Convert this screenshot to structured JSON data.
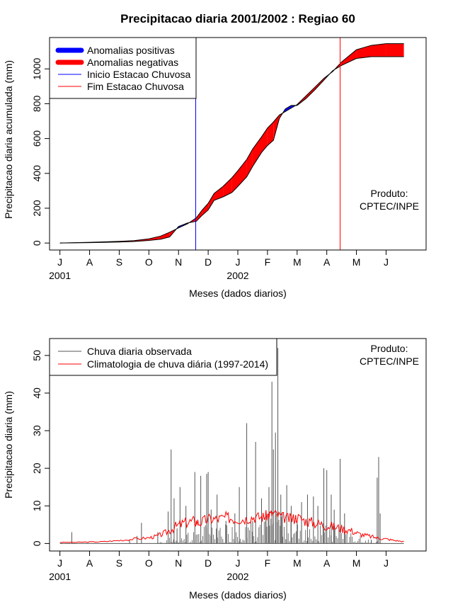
{
  "chart_data": [
    {
      "type": "area",
      "title": "Precipitacao diaria 2001/2002 : Regiao 60",
      "xlabel": "Meses (dados diarios)",
      "ylabel": "Precipitacao diaria acumulada (mm)",
      "ylim": [
        -40,
        1180
      ],
      "yticks": [
        0,
        200,
        400,
        600,
        800,
        1000
      ],
      "month_labels": [
        "J",
        "A",
        "S",
        "O",
        "N",
        "D",
        "J",
        "F",
        "M",
        "A",
        "M",
        "J"
      ],
      "year_labels": [
        {
          "label": "2001",
          "month_index": 0
        },
        {
          "label": "2002",
          "month_index": 6
        }
      ],
      "x_unit": "months since 1 Jul 2001",
      "xlim": [
        -0.35,
        12.35
      ],
      "legend": [
        {
          "label": "Anomalias positivas",
          "color": "#0000ff",
          "kind": "thick"
        },
        {
          "label": "Anomalias negativas",
          "color": "#ff0000",
          "kind": "thick"
        },
        {
          "label": "Inicio Estacao Chuvosa",
          "color": "#0000ff",
          "kind": "thin"
        },
        {
          "label": "Fim Estacao Chuvosa",
          "color": "#ff0000",
          "kind": "thin"
        }
      ],
      "legend_position": "top-left",
      "onset_month": 4.58,
      "end_month": 9.45,
      "annotation": [
        "Produto:",
        "CPTEC/INPE"
      ],
      "annotation_position": "right",
      "observed_accumulated": {
        "x": [
          0,
          1,
          2,
          2.5,
          3,
          3.4,
          3.7,
          4,
          4.3,
          4.6,
          4.8,
          5,
          5.2,
          5.5,
          5.8,
          6,
          6.3,
          6.5,
          6.8,
          7,
          7.2,
          7.4,
          7.6,
          7.8,
          8.0,
          8.3,
          8.6,
          8.9,
          9.2,
          9.5,
          10,
          10.5,
          11,
          11.6
        ],
        "y": [
          0,
          2,
          6,
          9,
          15,
          22,
          35,
          95,
          115,
          125,
          160,
          190,
          245,
          265,
          290,
          325,
          380,
          440,
          520,
          560,
          590,
          715,
          770,
          790,
          790,
          830,
          880,
          935,
          990,
          1020,
          1060,
          1070,
          1070,
          1070
        ]
      },
      "climatology_accumulated": {
        "x": [
          0,
          1,
          2,
          2.5,
          3,
          3.4,
          3.7,
          4,
          4.3,
          4.6,
          4.8,
          5,
          5.2,
          5.5,
          5.8,
          6,
          6.3,
          6.5,
          6.8,
          7,
          7.2,
          7.4,
          7.6,
          7.8,
          8.0,
          8.3,
          8.6,
          8.9,
          9.2,
          9.5,
          10,
          10.5,
          11,
          11.6
        ],
        "y": [
          0,
          4,
          10,
          14,
          24,
          40,
          62,
          87,
          110,
          145,
          190,
          228,
          285,
          325,
          375,
          415,
          480,
          540,
          610,
          660,
          695,
          735,
          755,
          775,
          795,
          845,
          895,
          945,
          985,
          1040,
          1110,
          1135,
          1145,
          1145
        ]
      }
    },
    {
      "type": "bar",
      "title": "",
      "xlabel": "Meses (dados diarios)",
      "ylabel": "Precipitacao diaria (mm)",
      "ylim": [
        -2,
        54.5
      ],
      "yticks": [
        0,
        10,
        20,
        30,
        40,
        50
      ],
      "month_labels": [
        "J",
        "A",
        "S",
        "O",
        "N",
        "D",
        "J",
        "F",
        "M",
        "A",
        "M",
        "J"
      ],
      "year_labels": [
        {
          "label": "2001",
          "month_index": 0
        },
        {
          "label": "2002",
          "month_index": 6
        }
      ],
      "x_unit": "months since 1 Jul 2001",
      "xlim": [
        -0.35,
        12.35
      ],
      "legend": [
        {
          "label": "Chuva diaria observada",
          "color": "#555555",
          "kind": "thin"
        },
        {
          "label": "Climatologia de chuva diária (1997-2014)",
          "color": "#ff0000",
          "kind": "thin"
        }
      ],
      "legend_position": "top-left",
      "annotation": [
        "Produto:",
        "CPTEC/INPE"
      ],
      "annotation_position": "top-right",
      "observed_peaks": {
        "x": [
          0.4,
          2.35,
          2.6,
          2.75,
          3.3,
          3.65,
          3.75,
          3.85,
          3.95,
          4.05,
          4.25,
          4.55,
          4.75,
          4.95,
          5.0,
          5.1,
          5.3,
          5.6,
          5.9,
          6.05,
          6.3,
          6.5,
          6.6,
          6.8,
          6.95,
          7.05,
          7.15,
          7.2,
          7.27,
          7.35,
          7.45,
          7.5,
          7.65,
          7.8,
          8.0,
          8.15,
          8.35,
          8.55,
          8.7,
          8.9,
          9.0,
          9.15,
          9.25,
          9.45,
          9.6,
          10.5,
          10.7,
          10.75,
          10.8
        ],
        "y": [
          3,
          1,
          2,
          5.5,
          3,
          8.5,
          25,
          12,
          4,
          15,
          10,
          19,
          18,
          18.5,
          19,
          9,
          13,
          6,
          8,
          15,
          32,
          6,
          27,
          12,
          6,
          15,
          43,
          25,
          29.5,
          52,
          13,
          8,
          15.5,
          10,
          6,
          11,
          13,
          12.5,
          10,
          20,
          19.5,
          13,
          9,
          22.5,
          8,
          1,
          17.5,
          23,
          8
        ]
      },
      "climatology_daily": {
        "x": [
          0,
          0.5,
          1,
          1.5,
          2,
          2.5,
          3,
          3.3,
          3.6,
          3.9,
          4.2,
          4.5,
          4.7,
          5,
          5.3,
          5.6,
          5.9,
          6.2,
          6.5,
          6.8,
          7.0,
          7.2,
          7.5,
          7.8,
          8.0,
          8.3,
          8.6,
          8.9,
          9.2,
          9.5,
          9.8,
          10.1,
          10.4,
          10.7,
          11,
          11.3,
          11.6
        ],
        "y": [
          0.3,
          0.3,
          0.4,
          0.5,
          0.8,
          1.2,
          1.5,
          2,
          3,
          4.5,
          5.5,
          6,
          5.5,
          6.5,
          6.5,
          7,
          6.5,
          6.5,
          7,
          7,
          7.5,
          8,
          7,
          6.5,
          7,
          6,
          5.5,
          5,
          4.5,
          4,
          3.5,
          2.5,
          2,
          1.5,
          1.2,
          0.8,
          0.5
        ]
      }
    }
  ]
}
